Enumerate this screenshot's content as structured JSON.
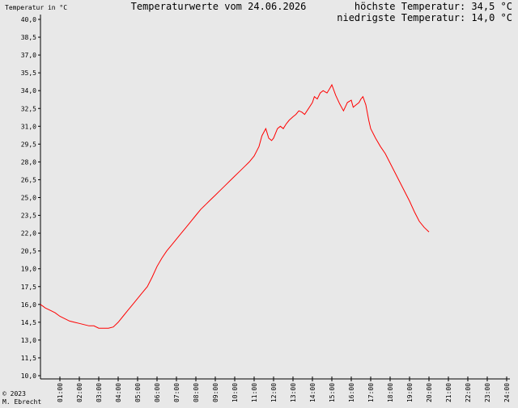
{
  "header": {
    "ylabel": "Temperatur in °C",
    "title": "Temperaturwerte vom 24.06.2026",
    "max_label": "höchste Temperatur: 34,5 °C",
    "min_label": "niedrigste Temperatur: 14,0 °C"
  },
  "footer": {
    "copyright": "© 2023",
    "author": "M. Ebrecht"
  },
  "colors": {
    "background": "#e8e8e8",
    "line": "#ff0000",
    "axis": "#000000"
  },
  "chart_data": {
    "type": "line",
    "title": "Temperaturwerte vom 24.06.2026",
    "xlabel": "",
    "ylabel": "Temperatur in °C",
    "xlim": [
      0,
      24
    ],
    "ylim": [
      10.0,
      40.0
    ],
    "grid": false,
    "x_ticks": [
      "01:00",
      "02:00",
      "03:00",
      "04:00",
      "05:00",
      "06:00",
      "07:00",
      "08:00",
      "09:00",
      "10:00",
      "11:00",
      "12:00",
      "13:00",
      "14:00",
      "15:00",
      "16:00",
      "17:00",
      "18:00",
      "19:00",
      "20:00",
      "21:00",
      "22:00",
      "23:00",
      "24:00"
    ],
    "y_ticks": [
      "10,0",
      "11,5",
      "13,0",
      "14,5",
      "16,0",
      "17,5",
      "19,0",
      "20,5",
      "22,0",
      "23,5",
      "25,0",
      "26,5",
      "28,0",
      "29,5",
      "31,0",
      "32,5",
      "34,0",
      "35,5",
      "37,0",
      "38,5",
      "40,0"
    ],
    "series": [
      {
        "x": [
          0.0,
          0.25,
          0.5,
          0.75,
          1.0,
          1.25,
          1.5,
          1.75,
          2.0,
          2.25,
          2.5,
          2.75,
          3.0,
          3.25,
          3.5,
          3.75,
          4.0,
          4.25,
          4.5,
          4.75,
          5.0,
          5.25,
          5.5,
          5.75,
          6.0,
          6.25,
          6.5,
          6.75,
          7.0,
          7.25,
          7.5,
          7.75,
          8.0,
          8.25,
          8.5,
          8.75,
          9.0,
          9.25,
          9.5,
          9.75,
          10.0,
          10.25,
          10.5,
          10.75,
          11.0,
          11.25,
          11.4,
          11.6,
          11.75,
          11.9,
          12.0,
          12.2,
          12.35,
          12.5,
          12.65,
          12.8,
          13.0,
          13.15,
          13.3,
          13.45,
          13.6,
          13.8,
          14.0,
          14.1,
          14.25,
          14.4,
          14.55,
          14.75,
          14.9,
          15.0,
          15.2,
          15.4,
          15.6,
          15.8,
          16.0,
          16.1,
          16.25,
          16.4,
          16.5,
          16.6,
          16.75,
          16.9,
          17.0,
          17.25,
          17.5,
          17.75,
          18.0,
          18.25,
          18.5,
          18.75,
          19.0,
          19.25,
          19.5,
          19.75,
          20.0
        ],
        "y": [
          16.0,
          15.7,
          15.5,
          15.3,
          15.0,
          14.8,
          14.6,
          14.5,
          14.4,
          14.3,
          14.2,
          14.2,
          14.0,
          14.0,
          14.0,
          14.1,
          14.5,
          15.0,
          15.5,
          16.0,
          16.5,
          17.0,
          17.5,
          18.3,
          19.2,
          19.9,
          20.5,
          21.0,
          21.5,
          22.0,
          22.5,
          23.0,
          23.5,
          24.0,
          24.4,
          24.8,
          25.2,
          25.6,
          26.0,
          26.4,
          26.8,
          27.2,
          27.6,
          28.0,
          28.5,
          29.3,
          30.2,
          30.8,
          30.0,
          29.8,
          30.0,
          30.8,
          31.0,
          30.8,
          31.2,
          31.5,
          31.8,
          32.0,
          32.3,
          32.2,
          32.0,
          32.5,
          33.0,
          33.5,
          33.3,
          33.8,
          34.0,
          33.8,
          34.2,
          34.5,
          33.6,
          32.9,
          32.3,
          33.0,
          33.2,
          32.6,
          32.8,
          33.0,
          33.3,
          33.5,
          32.8,
          31.5,
          30.8,
          30.0,
          29.3,
          28.7,
          27.9,
          27.1,
          26.3,
          25.5,
          24.7,
          23.8,
          23.0,
          22.5,
          22.1
        ]
      }
    ]
  }
}
